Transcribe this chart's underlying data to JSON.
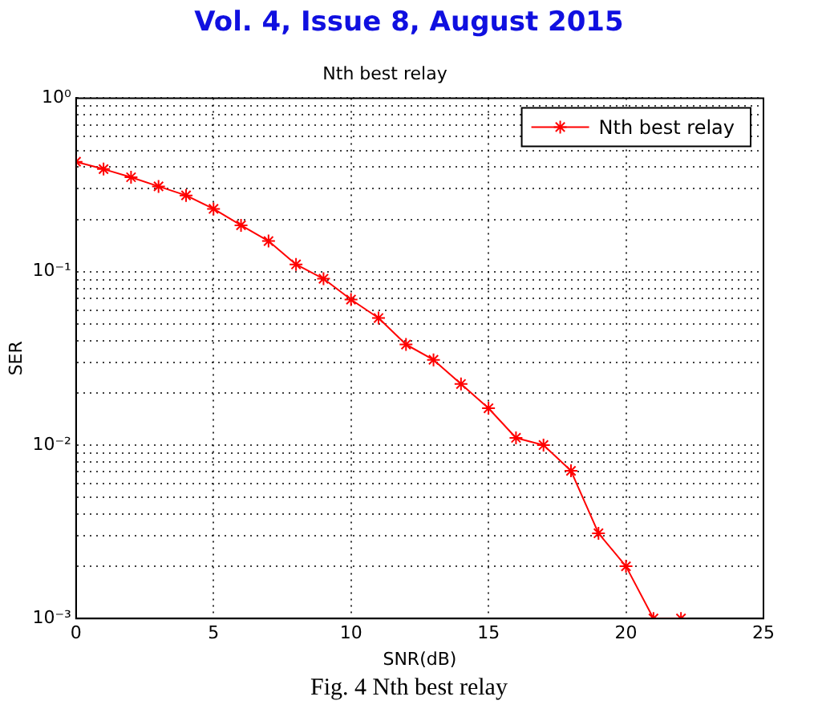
{
  "chart_data": {
    "type": "line",
    "title": "Nth best relay",
    "xlabel": "SNR(dB)",
    "ylabel": "SER",
    "annotations": [
      "Vol. 4, Issue 8, August 2015",
      "Fig. 4 Nth best relay"
    ],
    "x": [
      0,
      1,
      2,
      3,
      4,
      5,
      6,
      7,
      8,
      9,
      10,
      11,
      12,
      13,
      14,
      15,
      16,
      17,
      18,
      19,
      20,
      21,
      22
    ],
    "series": [
      {
        "name": "Nth best relay",
        "color": "#ff0000",
        "values": [
          0.43,
          0.39,
          0.35,
          0.31,
          0.275,
          0.23,
          0.185,
          0.15,
          0.11,
          0.091,
          0.069,
          0.054,
          0.038,
          0.031,
          0.0225,
          0.0163,
          0.011,
          0.01,
          0.0071,
          0.0031,
          0.002,
          0.001,
          0.001
        ]
      }
    ],
    "xlim": [
      0,
      25
    ],
    "xticks": [
      0,
      5,
      10,
      15,
      20,
      25
    ],
    "ylim": [
      0.001,
      1
    ],
    "yticks": [
      {
        "value": 0.001,
        "label": "10⁻³"
      },
      {
        "value": 0.002,
        "label": null
      },
      {
        "value": 0.003,
        "label": null
      },
      {
        "value": 0.004,
        "label": null
      },
      {
        "value": 0.005,
        "label": null
      },
      {
        "value": 0.006,
        "label": null
      },
      {
        "value": 0.007,
        "label": null
      },
      {
        "value": 0.008,
        "label": null
      },
      {
        "value": 0.009,
        "label": null
      },
      {
        "value": 0.01,
        "label": "10⁻²"
      },
      {
        "value": 0.02,
        "label": null
      },
      {
        "value": 0.03,
        "label": null
      },
      {
        "value": 0.04,
        "label": null
      },
      {
        "value": 0.05,
        "label": null
      },
      {
        "value": 0.06,
        "label": null
      },
      {
        "value": 0.07,
        "label": null
      },
      {
        "value": 0.08,
        "label": null
      },
      {
        "value": 0.09,
        "label": null
      },
      {
        "value": 0.1,
        "label": "10⁻¹"
      },
      {
        "value": 0.2,
        "label": null
      },
      {
        "value": 0.3,
        "label": null
      },
      {
        "value": 0.4,
        "label": null
      },
      {
        "value": 0.5,
        "label": null
      },
      {
        "value": 0.6,
        "label": null
      },
      {
        "value": 0.7,
        "label": null
      },
      {
        "value": 0.8,
        "label": null
      },
      {
        "value": 0.9,
        "label": null
      },
      {
        "value": 1,
        "label": "10⁰"
      }
    ],
    "log": "y",
    "grid": true,
    "legend": "top right",
    "marker": "cross",
    "line_style": "solid"
  }
}
